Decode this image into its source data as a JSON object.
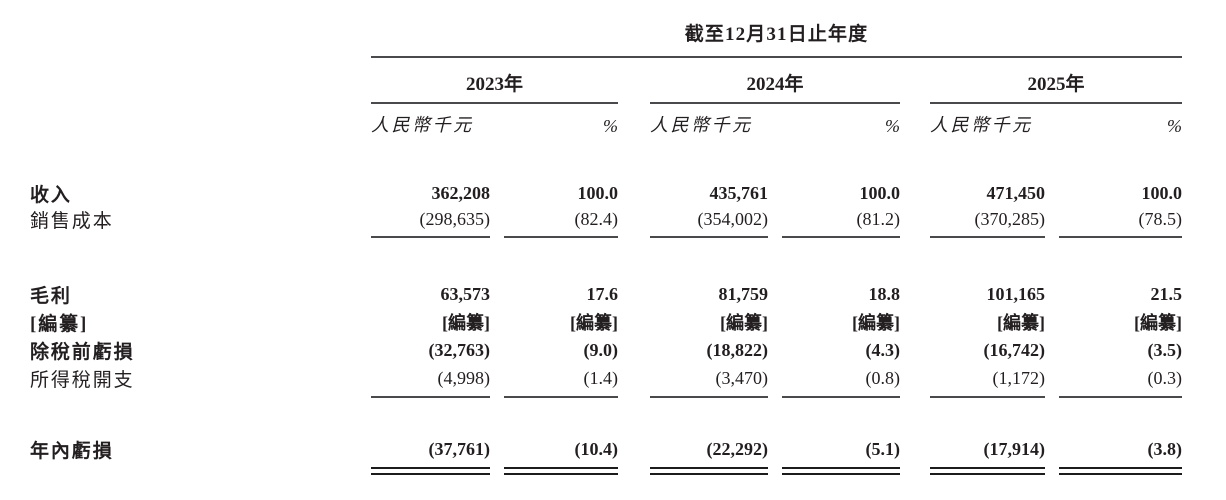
{
  "table": {
    "period_header": "截至12月31日止年度",
    "unit_label": "人民幣千元",
    "percent_label": "%",
    "year_groups": [
      {
        "year": "2023年"
      },
      {
        "year": "2024年"
      },
      {
        "year": "2025年"
      }
    ],
    "rows": [
      {
        "label": "收入",
        "values": [
          "362,208",
          "100.0",
          "435,761",
          "100.0",
          "471,450",
          "100.0"
        ]
      },
      {
        "label": "銷售成本",
        "values": [
          "(298,635)",
          "(82.4)",
          "(354,002)",
          "(81.2)",
          "(370,285)",
          "(78.5)"
        ]
      },
      {
        "label": "毛利",
        "values": [
          "63,573",
          "17.6",
          "81,759",
          "18.8",
          "101,165",
          "21.5"
        ]
      },
      {
        "label": "[編纂]",
        "values": [
          "[編纂]",
          "[編纂]",
          "[編纂]",
          "[編纂]",
          "[編纂]",
          "[編纂]"
        ]
      },
      {
        "label": "除稅前虧損",
        "values": [
          "(32,763)",
          "(9.0)",
          "(18,822)",
          "(4.3)",
          "(16,742)",
          "(3.5)"
        ]
      },
      {
        "label": "所得稅開支",
        "values": [
          "(4,998)",
          "(1.4)",
          "(3,470)",
          "(0.8)",
          "(1,172)",
          "(0.3)"
        ]
      },
      {
        "label": "年內虧損",
        "values": [
          "(37,761)",
          "(10.4)",
          "(22,292)",
          "(5.1)",
          "(17,914)",
          "(3.8)"
        ]
      }
    ]
  }
}
